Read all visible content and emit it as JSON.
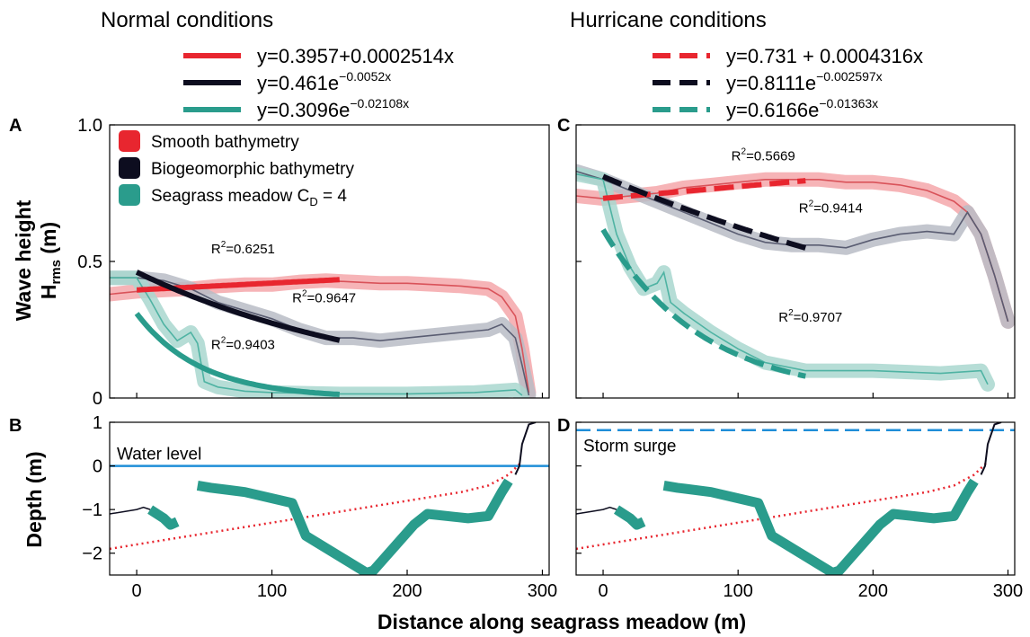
{
  "figure": {
    "normal_title": "Normal conditions",
    "hurricane_title": "Hurricane conditions",
    "y_top_label_1": "Wave height",
    "y_top_label_2": "H",
    "y_top_label_2_sub": "rms",
    "y_top_label_2_unit": " (m)",
    "y_bottom_label": "Depth (m)",
    "x_label": "Distance along seagrass meadow (m)"
  },
  "colors": {
    "smooth": "#e8262f",
    "smooth_band": "#f4a7aa",
    "bio": "#0d0d1f",
    "bio_band": "#b9bcc6",
    "seagrass": "#2a9c8c",
    "seagrass_band": "#a9d7cf",
    "water": "#1f8ed8",
    "dotted": "#e8262f"
  },
  "legend_fits": {
    "normal": [
      {
        "series": "smooth",
        "style": "solid",
        "text": "y=0.3957+0.0002514x"
      },
      {
        "series": "bio",
        "style": "solid",
        "text": "y=0.461e",
        "sup": "−0.0052x"
      },
      {
        "series": "seagrass",
        "style": "solid",
        "text": "y=0.3096e",
        "sup": "−0.02108x"
      }
    ],
    "hurricane": [
      {
        "series": "smooth",
        "style": "dashed",
        "text": "y=0.731 + 0.0004316x"
      },
      {
        "series": "bio",
        "style": "dashed",
        "text": "y=0.8111e",
        "sup": "−0.002597x"
      },
      {
        "series": "seagrass",
        "style": "dashed",
        "text": "y=0.6166e",
        "sup": "−0.01363x"
      }
    ]
  },
  "legend_series": [
    {
      "series": "smooth",
      "label": "Smooth bathymetry"
    },
    {
      "series": "bio",
      "label": "Biogeomorphic bathymetry"
    },
    {
      "series": "seagrass",
      "label": "Seagrass meadow C",
      "sub": "D",
      "suffix": " = 4"
    }
  ],
  "chart_data": [
    {
      "panel": "A",
      "type": "line",
      "xlim": [
        -20,
        305
      ],
      "ylim": [
        0,
        1.0
      ],
      "yticks": [
        "0",
        "0.5",
        "1.0"
      ],
      "ytick_values": [
        0,
        0.5,
        1.0
      ],
      "series": [
        {
          "name": "Smooth bathymetry",
          "x": [
            -20,
            0,
            20,
            40,
            60,
            80,
            100,
            120,
            140,
            160,
            180,
            200,
            220,
            240,
            260,
            270,
            280,
            285,
            290
          ],
          "y": [
            0.38,
            0.39,
            0.395,
            0.4,
            0.41,
            0.415,
            0.415,
            0.425,
            0.43,
            0.425,
            0.42,
            0.42,
            0.415,
            0.41,
            0.4,
            0.37,
            0.3,
            0.18,
            0.02
          ]
        },
        {
          "name": "Biogeomorphic bathymetry",
          "x": [
            -20,
            0,
            20,
            40,
            60,
            80,
            100,
            120,
            140,
            160,
            180,
            200,
            220,
            240,
            260,
            270,
            280,
            285,
            290
          ],
          "y": [
            0.44,
            0.44,
            0.43,
            0.4,
            0.35,
            0.32,
            0.29,
            0.25,
            0.22,
            0.22,
            0.21,
            0.22,
            0.23,
            0.24,
            0.25,
            0.27,
            0.22,
            0.12,
            0.01
          ]
        },
        {
          "name": "Seagrass meadow C_D = 4",
          "x": [
            -20,
            0,
            10,
            20,
            30,
            40,
            45,
            50,
            60,
            80,
            100,
            150,
            200,
            250,
            280,
            285
          ],
          "y": [
            0.44,
            0.44,
            0.36,
            0.27,
            0.21,
            0.24,
            0.2,
            0.06,
            0.04,
            0.025,
            0.02,
            0.015,
            0.015,
            0.02,
            0.03,
            0.01
          ]
        }
      ],
      "fits": [
        {
          "series": "smooth",
          "style": "solid",
          "model": "linear",
          "a": 0.3957,
          "b": 0.0002514,
          "x": [
            0,
            150
          ]
        },
        {
          "series": "bio",
          "style": "solid",
          "model": "exp",
          "a": 0.461,
          "b": -0.0052,
          "x": [
            0,
            150
          ]
        },
        {
          "series": "seagrass",
          "style": "solid",
          "model": "exp",
          "a": 0.3096,
          "b": -0.02108,
          "x": [
            0,
            150
          ]
        }
      ],
      "annotations": [
        {
          "text": "R",
          "sup": "2",
          "rest": "=0.6251",
          "x": 55,
          "y": 0.53
        },
        {
          "text": "R",
          "sup": "2",
          "rest": "=0.9647",
          "x": 115,
          "y": 0.35
        },
        {
          "text": "R",
          "sup": "2",
          "rest": "=0.9403",
          "x": 55,
          "y": 0.18
        }
      ]
    },
    {
      "panel": "C",
      "type": "line",
      "xlim": [
        -20,
        305
      ],
      "ylim": [
        0,
        1.0
      ],
      "series": [
        {
          "name": "Smooth bathymetry",
          "x": [
            -20,
            0,
            20,
            40,
            60,
            80,
            100,
            120,
            140,
            160,
            180,
            200,
            220,
            240,
            260,
            270,
            280,
            290,
            300
          ],
          "y": [
            0.74,
            0.73,
            0.74,
            0.75,
            0.77,
            0.78,
            0.79,
            0.8,
            0.8,
            0.8,
            0.79,
            0.79,
            0.78,
            0.76,
            0.72,
            0.68,
            0.6,
            0.45,
            0.28
          ]
        },
        {
          "name": "Biogeomorphic bathymetry",
          "x": [
            -20,
            0,
            20,
            40,
            60,
            80,
            100,
            120,
            140,
            160,
            180,
            200,
            220,
            240,
            260,
            270,
            280,
            290,
            300
          ],
          "y": [
            0.83,
            0.8,
            0.76,
            0.72,
            0.68,
            0.64,
            0.6,
            0.57,
            0.56,
            0.56,
            0.55,
            0.58,
            0.6,
            0.61,
            0.6,
            0.68,
            0.6,
            0.45,
            0.28
          ]
        },
        {
          "name": "Seagrass meadow C_D = 4",
          "x": [
            -20,
            0,
            10,
            20,
            30,
            40,
            45,
            50,
            60,
            80,
            100,
            120,
            150,
            200,
            250,
            280,
            285
          ],
          "y": [
            0.82,
            0.8,
            0.6,
            0.48,
            0.4,
            0.42,
            0.46,
            0.35,
            0.31,
            0.24,
            0.18,
            0.13,
            0.1,
            0.1,
            0.09,
            0.1,
            0.05
          ]
        }
      ],
      "fits": [
        {
          "series": "smooth",
          "style": "dashed",
          "model": "linear",
          "a": 0.731,
          "b": 0.0004316,
          "x": [
            0,
            150
          ]
        },
        {
          "series": "bio",
          "style": "dashed",
          "model": "exp",
          "a": 0.8111,
          "b": -0.002597,
          "x": [
            0,
            150
          ]
        },
        {
          "series": "seagrass",
          "style": "dashed",
          "model": "exp",
          "a": 0.6166,
          "b": -0.01363,
          "x": [
            0,
            150
          ]
        }
      ],
      "annotations": [
        {
          "text": "R",
          "sup": "2",
          "rest": "=0.5669",
          "x": 95,
          "y": 0.87
        },
        {
          "text": "R",
          "sup": "2",
          "rest": "=0.9414",
          "x": 145,
          "y": 0.68
        },
        {
          "text": "R",
          "sup": "2",
          "rest": "=0.9707",
          "x": 130,
          "y": 0.28
        }
      ]
    },
    {
      "panel": "B",
      "type": "line",
      "xlim": [
        -20,
        305
      ],
      "ylim": [
        -2.5,
        1.0
      ],
      "xticks": [
        "0",
        "100",
        "200",
        "300"
      ],
      "xtick_values": [
        0,
        100,
        200,
        300
      ],
      "yticks": [
        "−2",
        "−1",
        "0",
        "1"
      ],
      "ytick_values": [
        -2,
        -1,
        0,
        1
      ],
      "water_level": {
        "label": "Water level",
        "y": 0.0,
        "style": "solid"
      },
      "bathymetry": {
        "x": [
          -20,
          -10,
          0,
          5,
          10
        ],
        "y": [
          -1.1,
          -1.05,
          -1.0,
          -0.95,
          -1.0
        ]
      },
      "bathymetry_near_shore": {
        "x": [
          280,
          283,
          285,
          290,
          295
        ],
        "y": [
          -0.2,
          0.0,
          0.5,
          0.95,
          1.0
        ]
      },
      "seagrass_segments": [
        {
          "x": [
            10,
            20,
            25,
            30
          ],
          "y": [
            -1.0,
            -1.2,
            -1.35,
            -1.28
          ]
        },
        {
          "x": [
            45,
            55,
            80,
            115,
            125,
            170,
            175,
            205,
            215,
            245,
            260,
            270,
            275
          ],
          "y": [
            -0.45,
            -0.5,
            -0.6,
            -0.85,
            -1.6,
            -2.45,
            -2.4,
            -1.35,
            -1.1,
            -1.2,
            -1.15,
            -0.6,
            -0.35
          ]
        }
      ],
      "dotted_profile": {
        "x": [
          -20,
          0,
          40,
          80,
          120,
          160,
          200,
          240,
          260,
          275,
          285
        ],
        "y": [
          -1.9,
          -1.8,
          -1.6,
          -1.4,
          -1.2,
          -1.0,
          -0.8,
          -0.6,
          -0.45,
          -0.2,
          0.1
        ]
      }
    },
    {
      "panel": "D",
      "type": "line",
      "xlim": [
        -20,
        305
      ],
      "ylim": [
        -2.5,
        1.0
      ],
      "water_level": {
        "label": "Storm surge",
        "y": 0.82,
        "style": "dashed"
      },
      "bathymetry": {
        "x": [
          -20,
          -10,
          0,
          5,
          10
        ],
        "y": [
          -1.1,
          -1.05,
          -1.0,
          -0.95,
          -1.0
        ]
      },
      "bathymetry_near_shore": {
        "x": [
          280,
          283,
          285,
          290,
          295
        ],
        "y": [
          -0.2,
          0.0,
          0.5,
          0.95,
          1.0
        ]
      },
      "seagrass_segments": [
        {
          "x": [
            10,
            20,
            25,
            30
          ],
          "y": [
            -1.0,
            -1.2,
            -1.35,
            -1.28
          ]
        },
        {
          "x": [
            45,
            55,
            80,
            115,
            125,
            170,
            175,
            205,
            215,
            245,
            260,
            270,
            275
          ],
          "y": [
            -0.45,
            -0.5,
            -0.6,
            -0.85,
            -1.6,
            -2.45,
            -2.4,
            -1.35,
            -1.1,
            -1.2,
            -1.15,
            -0.6,
            -0.35
          ]
        }
      ],
      "dotted_profile": {
        "x": [
          -20,
          0,
          40,
          80,
          120,
          160,
          200,
          240,
          260,
          275,
          285
        ],
        "y": [
          -1.9,
          -1.8,
          -1.6,
          -1.4,
          -1.2,
          -1.0,
          -0.8,
          -0.6,
          -0.45,
          -0.2,
          0.1
        ]
      }
    }
  ]
}
